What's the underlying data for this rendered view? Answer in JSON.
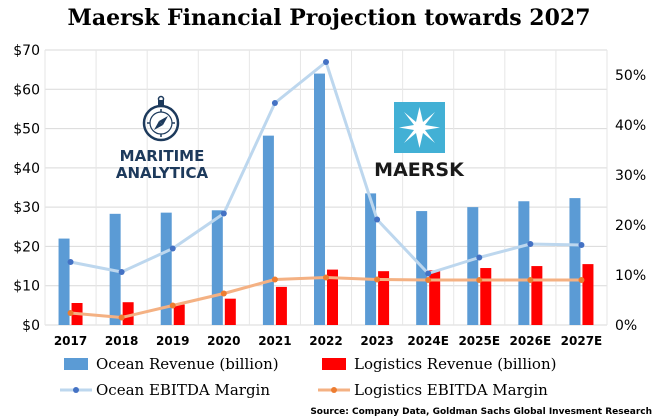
{
  "chart_data": {
    "type": "bar",
    "title": "Maersk Financial Projection towards  2027",
    "categories": [
      "2017",
      "2018",
      "2019",
      "2020",
      "2021",
      "2022",
      "2023",
      "2024E",
      "2025E",
      "2026E",
      "2027E"
    ],
    "left_axis": {
      "ylim": [
        0,
        70
      ],
      "ticks": [
        "$0",
        "$10",
        "$20",
        "$30",
        "$40",
        "$50",
        "$60",
        "$70"
      ]
    },
    "right_axis": {
      "ylim": [
        0,
        55
      ],
      "ticks": [
        "0%",
        "10%",
        "20%",
        "30%",
        "40%",
        "50%"
      ]
    },
    "grid": true,
    "legend_position": "bottom",
    "series": [
      {
        "name": "Ocean Revenue (billion)",
        "type": "bar",
        "axis": "left",
        "color": "#5b9bd5",
        "values": [
          22,
          28.3,
          28.6,
          29.2,
          48.2,
          64,
          33.5,
          29,
          30,
          31.5,
          32.3
        ]
      },
      {
        "name": "Logistics Revenue (billion)",
        "type": "bar",
        "axis": "left",
        "color": "#ff0000",
        "values": [
          5.6,
          5.8,
          5.2,
          6.7,
          9.7,
          14.1,
          13.7,
          13.9,
          14.5,
          15,
          15.5
        ]
      },
      {
        "name": "Ocean EBITDA Margin",
        "type": "line",
        "axis": "right",
        "color": "#bdd7ee",
        "marker_color": "#4472c4",
        "values": [
          12.6,
          10.6,
          15.3,
          22.3,
          44.4,
          52.6,
          21.1,
          10.3,
          13.5,
          16.2,
          16
        ]
      },
      {
        "name": "Logistics EBITDA Margin",
        "type": "line",
        "axis": "right",
        "color": "#f4b183",
        "marker_color": "#ed7d31",
        "values": [
          2.4,
          1.5,
          3.9,
          6.3,
          9.1,
          9.5,
          9.1,
          9,
          9,
          9,
          9
        ]
      }
    ],
    "source": "Source: Company Data, Goldman Sachs Global Invesment Research"
  },
  "logos": {
    "maritime_line1": "MARITIME",
    "maritime_line2": "ANALYTICA",
    "maersk": "MAERSK",
    "maritime_icon": "compass-icon",
    "maersk_icon": "star-icon"
  }
}
